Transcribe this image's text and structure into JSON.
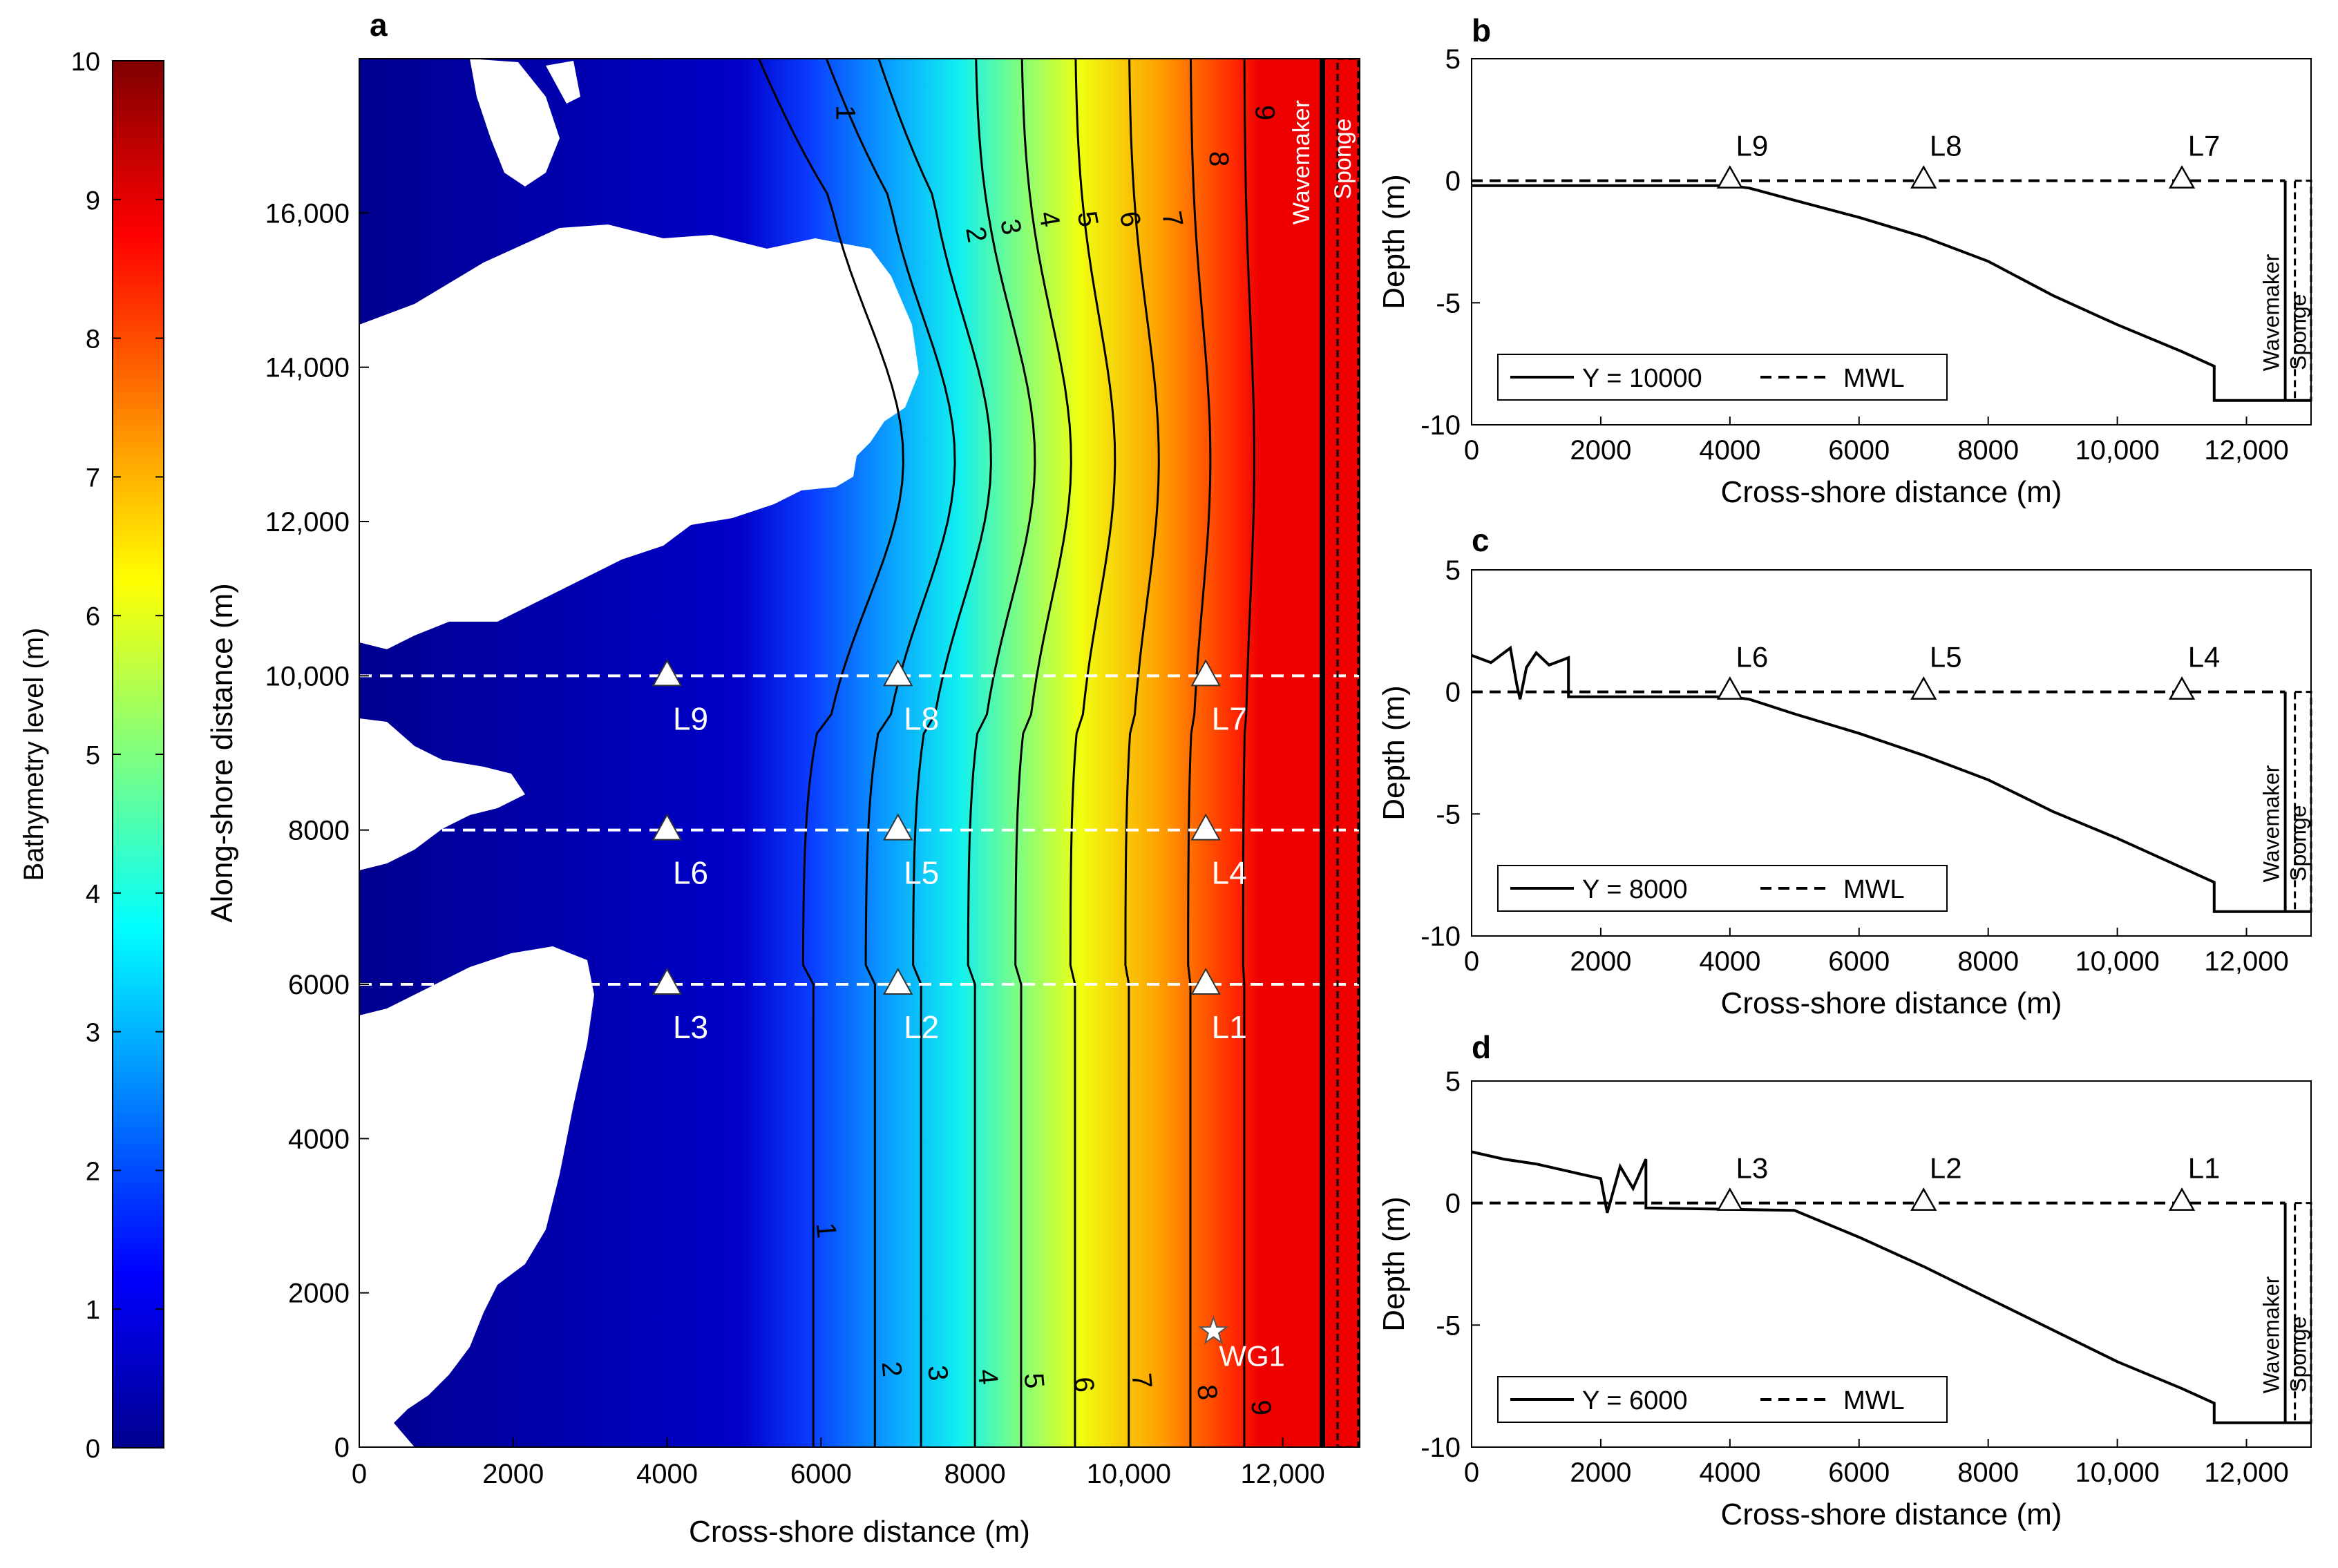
{
  "panels": {
    "a": "a",
    "b": "b",
    "c": "c",
    "d": "d"
  },
  "colorbar": {
    "label": "Bathymetry level (m)",
    "ticks": [
      0,
      1,
      2,
      3,
      4,
      5,
      6,
      7,
      8,
      9,
      10
    ]
  },
  "map": {
    "xlabel": "Cross-shore distance (m)",
    "ylabel": "Along-shore distance (m)",
    "x_ticks": [
      0,
      2000,
      4000,
      6000,
      8000,
      10000,
      12000
    ],
    "x_tick_labels": [
      "0",
      "2000",
      "4000",
      "6000",
      "8000",
      "10,000",
      "12,000"
    ],
    "y_ticks": [
      0,
      2000,
      4000,
      6000,
      8000,
      10000,
      12000,
      14000,
      16000
    ],
    "y_tick_labels": [
      "0",
      "2000",
      "4000",
      "6000",
      "8000",
      "10,000",
      "12,000",
      "14,000",
      "16,000"
    ],
    "wavemaker_label": "Wavemaker",
    "sponge_label": "Sponge",
    "gauge": {
      "label": "WG1",
      "x": 11100,
      "y": 1500
    },
    "stations": [
      {
        "label": "L9",
        "x": 4000,
        "y": 10000
      },
      {
        "label": "L8",
        "x": 7000,
        "y": 10000
      },
      {
        "label": "L7",
        "x": 11000,
        "y": 10000
      },
      {
        "label": "L6",
        "x": 4000,
        "y": 8000
      },
      {
        "label": "L5",
        "x": 7000,
        "y": 8000
      },
      {
        "label": "L4",
        "x": 11000,
        "y": 8000
      },
      {
        "label": "L3",
        "x": 4000,
        "y": 6000
      },
      {
        "label": "L2",
        "x": 7000,
        "y": 6000
      },
      {
        "label": "L1",
        "x": 11000,
        "y": 6000
      }
    ],
    "contour_top_labels": [
      "1",
      "2",
      "3",
      "4",
      "5",
      "6",
      "7",
      "8",
      "9"
    ],
    "contour_bottom_labels": [
      "1",
      "2",
      "3",
      "4",
      "5",
      "6",
      "7",
      "8",
      "9"
    ]
  },
  "profile_common": {
    "xlabel": "Cross-shore distance (m)",
    "ylabel": "Depth (m)",
    "x_tick_labels": [
      "0",
      "2000",
      "4000",
      "6000",
      "8000",
      "10,000",
      "12,000"
    ],
    "y_tick_labels": [
      "5",
      "0",
      "-5",
      "-10"
    ],
    "wavemaker_label": "Wavemaker",
    "sponge_label": "Sponge",
    "mwl_label": "MWL"
  },
  "profiles": {
    "b": {
      "legend": "Y = 10000",
      "stations": [
        "L9",
        "L8",
        "L7"
      ]
    },
    "c": {
      "legend": "Y = 8000",
      "stations": [
        "L6",
        "L5",
        "L4"
      ]
    },
    "d": {
      "legend": "Y = 6000",
      "stations": [
        "L3",
        "L2",
        "L1"
      ]
    }
  },
  "chart_data": [
    {
      "type": "heatmap",
      "title": "",
      "xlabel": "Cross-shore distance (m)",
      "ylabel": "Along-shore distance (m)",
      "xlim": [
        0,
        13000
      ],
      "ylim": [
        0,
        18000
      ],
      "colorbar": {
        "label": "Bathymetry level (m)",
        "range": [
          0,
          10
        ],
        "colormap": "jet"
      },
      "contour_levels": [
        1,
        2,
        3,
        4,
        5,
        6,
        7,
        8,
        9
      ],
      "transects_y": [
        6000,
        8000,
        10000
      ],
      "station_x": [
        4000,
        7000,
        11000
      ],
      "wavemaker_x": 12600,
      "sponge_x": [
        12700,
        13000
      ]
    },
    {
      "type": "line",
      "panel": "b",
      "xlabel": "Cross-shore distance (m)",
      "ylabel": "Depth (m)",
      "xlim": [
        0,
        13000
      ],
      "ylim": [
        -10,
        5
      ],
      "series": [
        {
          "name": "Y = 10000",
          "x": [
            0,
            2000,
            4000,
            4300,
            5000,
            6000,
            7000,
            8000,
            9000,
            10000,
            11000,
            11500,
            11500,
            13000
          ],
          "y": [
            -0.2,
            -0.2,
            -0.2,
            -0.3,
            -0.8,
            -1.5,
            -2.3,
            -3.3,
            -4.7,
            -5.9,
            -7.0,
            -7.6,
            -9,
            -9
          ]
        },
        {
          "name": "MWL",
          "x": [
            0,
            13000
          ],
          "y": [
            0,
            0
          ]
        }
      ],
      "stations": [
        {
          "label": "L9",
          "x": 4000
        },
        {
          "label": "L8",
          "x": 7000
        },
        {
          "label": "L7",
          "x": 11000
        }
      ]
    },
    {
      "type": "line",
      "panel": "c",
      "xlabel": "Cross-shore distance (m)",
      "ylabel": "Depth (m)",
      "xlim": [
        0,
        13000
      ],
      "ylim": [
        -10,
        5
      ],
      "series": [
        {
          "name": "Y = 8000",
          "x": [
            0,
            300,
            600,
            700,
            750,
            850,
            1000,
            1200,
            1500,
            1500,
            4000,
            4300,
            5000,
            6000,
            7000,
            8000,
            9000,
            10000,
            11000,
            11500,
            11500,
            13000
          ],
          "y": [
            1.5,
            1.2,
            1.8,
            0.3,
            -0.3,
            1.0,
            1.6,
            1.1,
            1.4,
            -0.2,
            -0.2,
            -0.3,
            -0.9,
            -1.7,
            -2.6,
            -3.6,
            -4.9,
            -6.0,
            -7.2,
            -7.8,
            -9,
            -9
          ]
        },
        {
          "name": "MWL",
          "x": [
            0,
            13000
          ],
          "y": [
            0,
            0
          ]
        }
      ],
      "stations": [
        {
          "label": "L6",
          "x": 4000
        },
        {
          "label": "L5",
          "x": 7000
        },
        {
          "label": "L4",
          "x": 11000
        }
      ]
    },
    {
      "type": "line",
      "panel": "d",
      "xlabel": "Cross-shore distance (m)",
      "ylabel": "Depth (m)",
      "xlim": [
        0,
        13000
      ],
      "ylim": [
        -10,
        5
      ],
      "series": [
        {
          "name": "Y = 6000",
          "x": [
            0,
            500,
            1000,
            1500,
            2000,
            2100,
            2300,
            2500,
            2700,
            2700,
            5000,
            6000,
            7000,
            8000,
            9000,
            10000,
            11000,
            11500,
            11500,
            13000
          ],
          "y": [
            2.1,
            1.8,
            1.6,
            1.3,
            1.0,
            -0.4,
            1.5,
            0.6,
            1.8,
            -0.2,
            -0.3,
            -1.4,
            -2.6,
            -3.9,
            -5.2,
            -6.5,
            -7.6,
            -8.2,
            -9,
            -9
          ]
        },
        {
          "name": "MWL",
          "x": [
            0,
            13000
          ],
          "y": [
            0,
            0
          ]
        }
      ],
      "stations": [
        {
          "label": "L3",
          "x": 4000
        },
        {
          "label": "L2",
          "x": 7000
        },
        {
          "label": "L1",
          "x": 11000
        }
      ]
    }
  ]
}
